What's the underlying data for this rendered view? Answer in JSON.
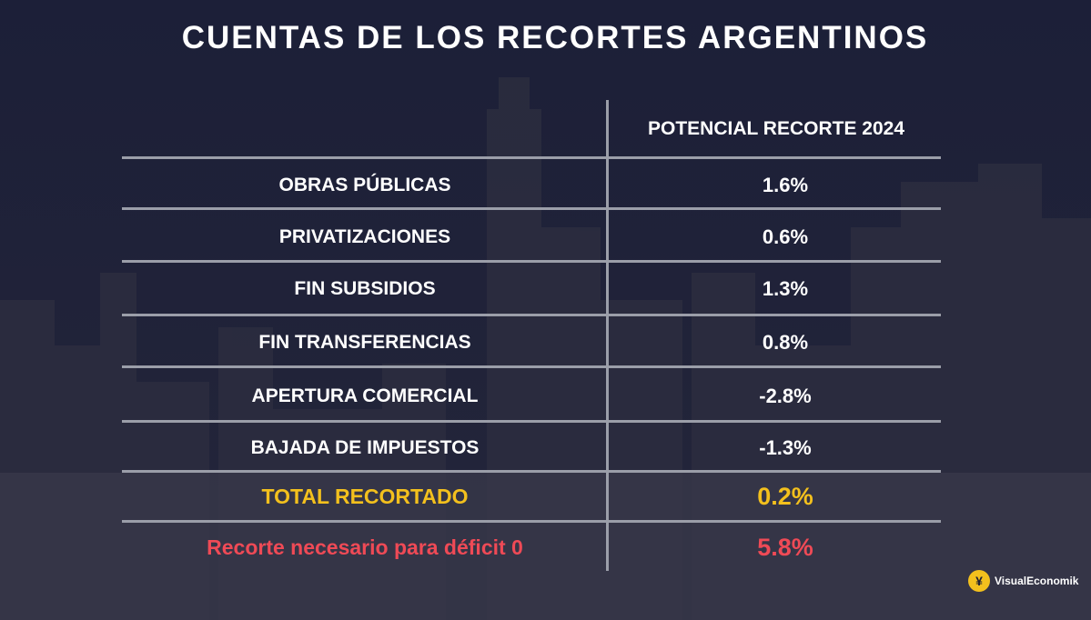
{
  "title": "CUENTAS DE LOS RECORTES ARGENTINOS",
  "brand": {
    "name": "VisualEconomik",
    "logo_glyph": "¥"
  },
  "chart_data": {
    "type": "table",
    "columns": [
      "",
      "POTENCIAL RECORTE 2024"
    ],
    "rows": [
      {
        "label": "OBRAS PÚBLICAS",
        "value": "1.6%"
      },
      {
        "label": "PRIVATIZACIONES",
        "value": "0.6%"
      },
      {
        "label": "FIN SUBSIDIOS",
        "value": "1.3%"
      },
      {
        "label": "FIN TRANSFERENCIAS",
        "value": "0.8%"
      },
      {
        "label": "APERTURA COMERCIAL",
        "value": "-2.8%"
      },
      {
        "label": "BAJADA DE IMPUESTOS",
        "value": "-1.3%"
      },
      {
        "label": "TOTAL RECORTADO",
        "value": "0.2%"
      },
      {
        "label": "Recorte necesario para déficit 0",
        "value": "5.8%"
      }
    ]
  },
  "colors": {
    "total": "#f3c01d",
    "needed": "#ef4a56",
    "text": "#ffffff",
    "background": "#1b1e34"
  }
}
